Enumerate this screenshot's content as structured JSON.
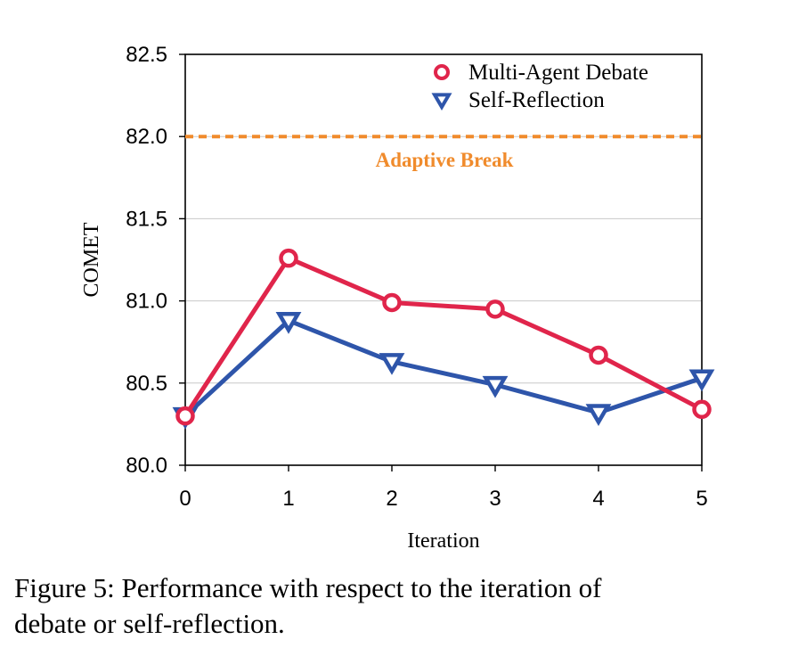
{
  "chart_data": {
    "type": "line",
    "x": [
      0,
      1,
      2,
      3,
      4,
      5
    ],
    "xlabel": "Iteration",
    "ylabel": "COMET",
    "ylim": [
      80.0,
      82.5
    ],
    "yticks": [
      "80.0",
      "80.5",
      "81.0",
      "81.5",
      "82.0",
      "82.5"
    ],
    "xticks": [
      "0",
      "1",
      "2",
      "3",
      "4",
      "5"
    ],
    "grid": "horizontal",
    "legend_position": "top-right",
    "series": [
      {
        "name": "Multi-Agent Debate",
        "values": [
          80.3,
          81.26,
          80.99,
          80.95,
          80.67,
          80.34
        ],
        "color": "#e0254b",
        "marker": "circle"
      },
      {
        "name": "Self-Reflection",
        "values": [
          80.3,
          80.88,
          80.63,
          80.49,
          80.32,
          80.53
        ],
        "color": "#2e55aa",
        "marker": "triangle-down"
      }
    ],
    "reference_line": {
      "label": "Adaptive Break",
      "value": 82.0,
      "color": "#f08b2c"
    }
  },
  "caption": {
    "line1": "Figure 5: Performance with respect to the iteration of",
    "line2": "debate or self-reflection."
  }
}
